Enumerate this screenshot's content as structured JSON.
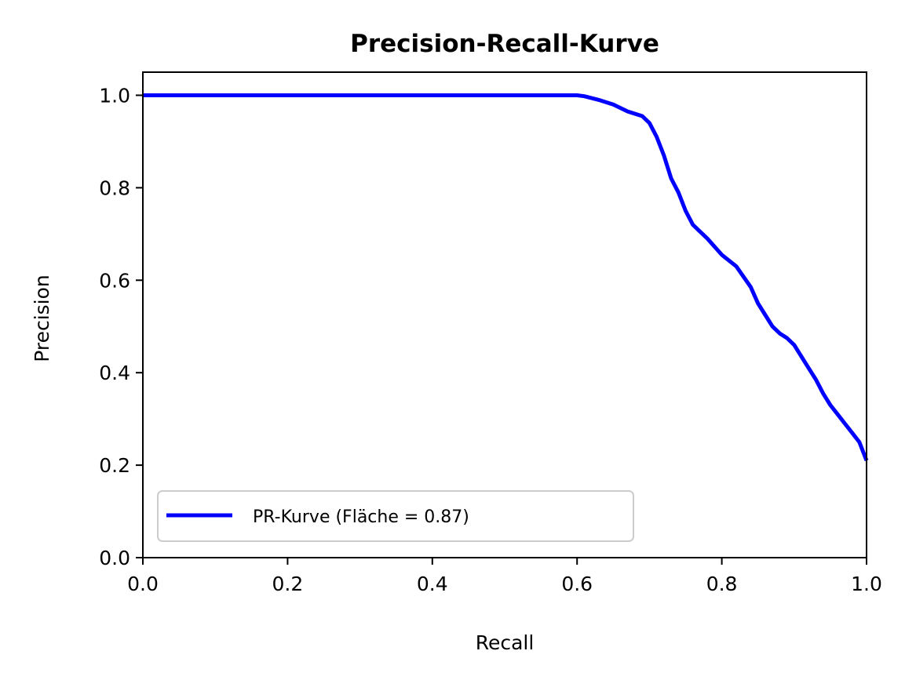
{
  "chart_data": {
    "type": "line",
    "title": "Precision-Recall-Kurve",
    "xlabel": "Recall",
    "ylabel": "Precision",
    "xlim": [
      0,
      1
    ],
    "ylim": [
      0,
      1.05
    ],
    "xticks": [
      0.0,
      0.2,
      0.4,
      0.6,
      0.8,
      1.0
    ],
    "xtick_labels": [
      "0.0",
      "0.2",
      "0.4",
      "0.6",
      "0.8",
      "1.0"
    ],
    "yticks": [
      0.0,
      0.2,
      0.4,
      0.6,
      0.8,
      1.0
    ],
    "ytick_labels": [
      "0.0",
      "0.2",
      "0.4",
      "0.6",
      "0.8",
      "1.0"
    ],
    "grid": false,
    "legend": {
      "placement": "lower-left"
    },
    "series": [
      {
        "name": "PR-Kurve (Fläche = 0.87)",
        "color": "#0000ff",
        "x": [
          0.0,
          0.1,
          0.2,
          0.3,
          0.4,
          0.5,
          0.6,
          0.61,
          0.63,
          0.65,
          0.67,
          0.69,
          0.7,
          0.71,
          0.72,
          0.73,
          0.74,
          0.75,
          0.76,
          0.78,
          0.8,
          0.82,
          0.84,
          0.85,
          0.86,
          0.87,
          0.88,
          0.89,
          0.9,
          0.91,
          0.92,
          0.93,
          0.94,
          0.95,
          0.96,
          0.97,
          0.98,
          0.99,
          1.0
        ],
        "y": [
          1.0,
          1.0,
          1.0,
          1.0,
          1.0,
          1.0,
          1.0,
          0.998,
          0.99,
          0.98,
          0.965,
          0.955,
          0.94,
          0.91,
          0.87,
          0.82,
          0.79,
          0.75,
          0.72,
          0.69,
          0.655,
          0.63,
          0.585,
          0.55,
          0.525,
          0.5,
          0.485,
          0.475,
          0.46,
          0.435,
          0.41,
          0.385,
          0.355,
          0.33,
          0.31,
          0.29,
          0.27,
          0.25,
          0.21
        ]
      }
    ]
  }
}
